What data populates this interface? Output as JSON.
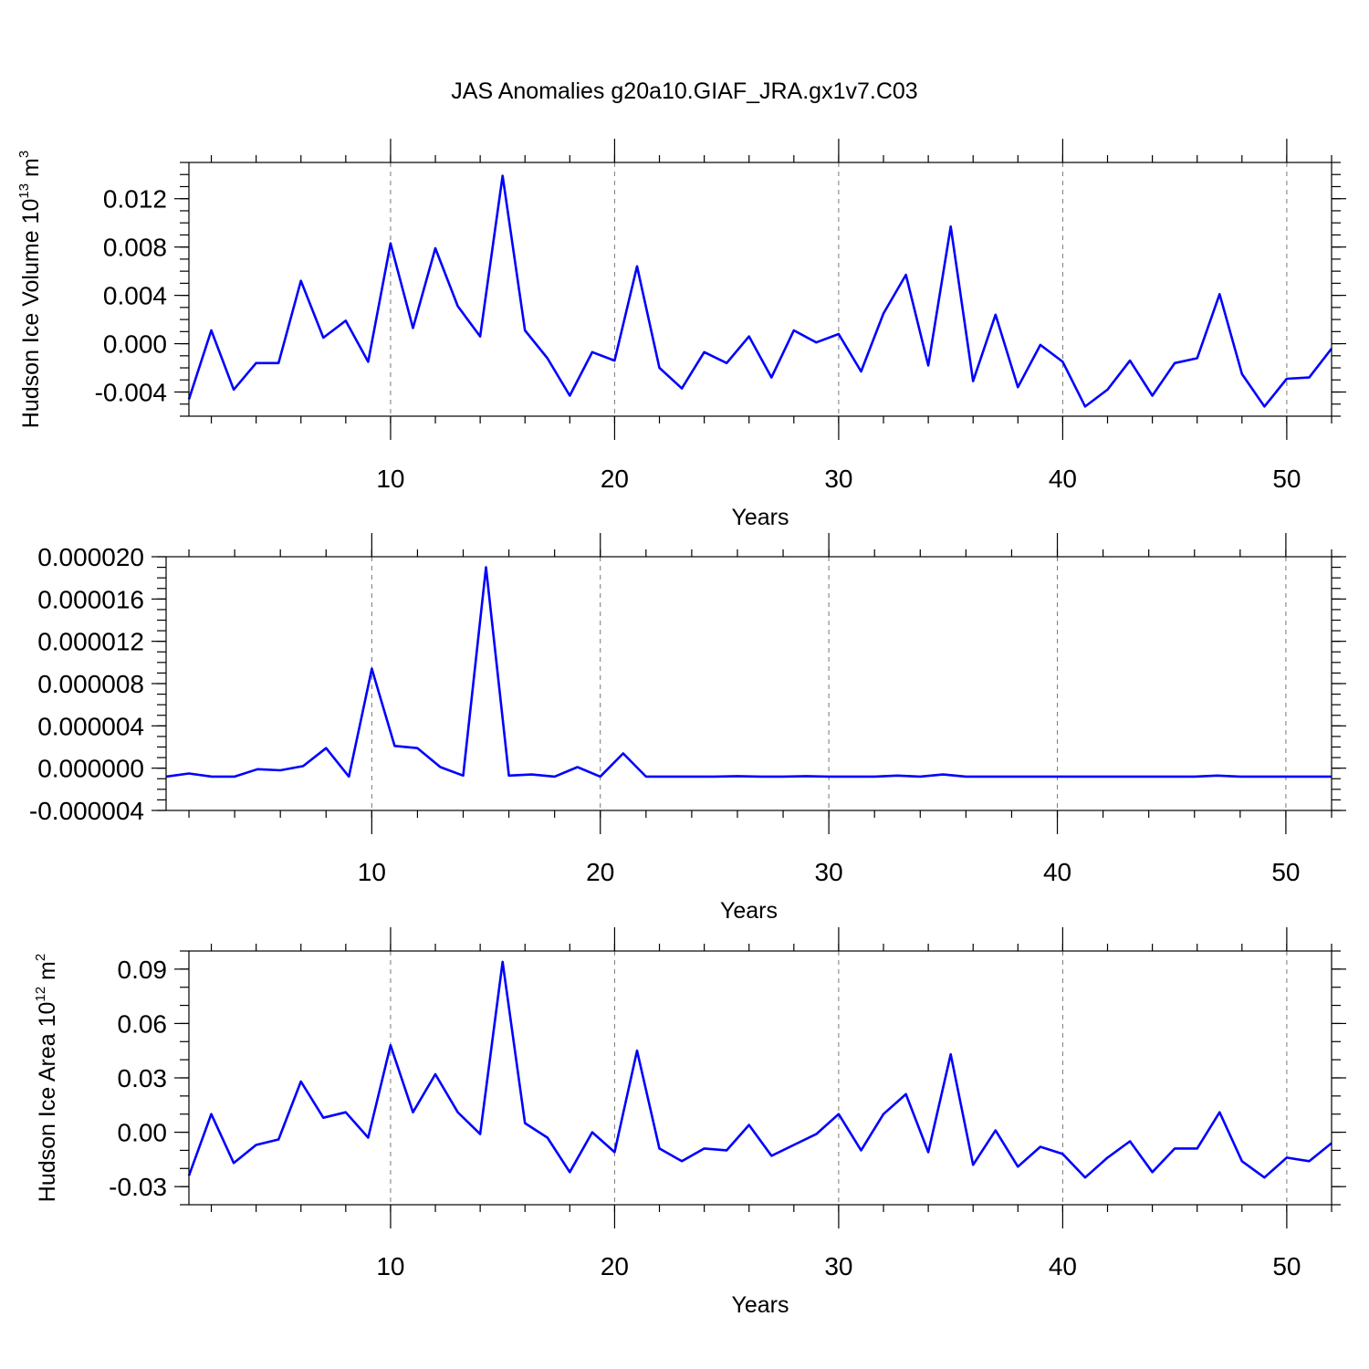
{
  "figure": {
    "title": "JAS Anomalies g20a10.GIAF_JRA.gx1v7.C03"
  },
  "style": {
    "line_color": "#0000ff"
  },
  "chart_data": [
    {
      "type": "line",
      "ylabel": "Hudson Ice Volume 10",
      "ylabel_sup": "13",
      "ylabel_unit": " m",
      "ylabel_unit_sup": "3",
      "xlabel": "Years",
      "xlim": [
        1,
        52
      ],
      "ylim": [
        -0.006,
        0.015
      ],
      "xticks": [
        10,
        20,
        30,
        40,
        50
      ],
      "xtick_labels": [
        "10",
        "20",
        "30",
        "40",
        "50"
      ],
      "x_minor": [
        2,
        4,
        6,
        8,
        10,
        12,
        14,
        16,
        18,
        20,
        22,
        24,
        26,
        28,
        30,
        32,
        34,
        36,
        38,
        40,
        42,
        44,
        46,
        48,
        50,
        52
      ],
      "yticks": [
        -0.004,
        0.0,
        0.004,
        0.008,
        0.012
      ],
      "ytick_labels": [
        "-0.004",
        "0.000",
        "0.004",
        "0.008",
        "0.012"
      ],
      "y_minor_step": 0.001,
      "grid_x": true,
      "x": [
        1,
        2,
        3,
        4,
        5,
        6,
        7,
        8,
        9,
        10,
        11,
        12,
        13,
        14,
        15,
        16,
        17,
        18,
        19,
        20,
        21,
        22,
        23,
        24,
        25,
        26,
        27,
        28,
        29,
        30,
        31,
        32,
        33,
        34,
        35,
        36,
        37,
        38,
        39,
        40,
        41,
        42,
        43,
        44,
        45,
        46,
        47,
        48,
        49,
        50,
        51,
        52
      ],
      "values": [
        -0.0046,
        0.0011,
        -0.0038,
        -0.0016,
        -0.0016,
        0.0052,
        0.0005,
        0.0019,
        -0.0015,
        0.0083,
        0.0013,
        0.0079,
        0.0031,
        0.0006,
        0.0139,
        0.0011,
        -0.0012,
        -0.0043,
        -0.0007,
        -0.0014,
        0.0064,
        -0.002,
        -0.0037,
        -0.0007,
        -0.0016,
        0.0006,
        -0.0028,
        0.0011,
        0.0001,
        0.0008,
        -0.0023,
        0.0025,
        0.0057,
        -0.0018,
        0.0097,
        -0.0031,
        0.0024,
        -0.0036,
        -0.0001,
        -0.0015,
        -0.0052,
        -0.0038,
        -0.0014,
        -0.0043,
        -0.0016,
        -0.0012,
        0.0041,
        -0.0025,
        -0.0052,
        -0.0029,
        -0.0028,
        -0.0004
      ]
    },
    {
      "type": "line",
      "ylabel": "",
      "xlabel": "Years",
      "xlim": [
        1,
        52
      ],
      "ylim": [
        -4e-06,
        2e-05
      ],
      "xticks": [
        10,
        20,
        30,
        40,
        50
      ],
      "xtick_labels": [
        "10",
        "20",
        "30",
        "40",
        "50"
      ],
      "x_minor": [
        2,
        4,
        6,
        8,
        10,
        12,
        14,
        16,
        18,
        20,
        22,
        24,
        26,
        28,
        30,
        32,
        34,
        36,
        38,
        40,
        42,
        44,
        46,
        48,
        50,
        52
      ],
      "yticks": [
        -4e-06,
        0.0,
        4e-06,
        8e-06,
        1.2e-05,
        1.6e-05,
        2e-05
      ],
      "ytick_labels": [
        "-0.000004",
        "0.000000",
        "0.000004",
        "0.000008",
        "0.000012",
        "0.000016",
        "0.000020"
      ],
      "y_minor_step": 1e-06,
      "grid_x": true,
      "x": [
        1,
        2,
        3,
        4,
        5,
        6,
        7,
        8,
        9,
        10,
        11,
        12,
        13,
        14,
        15,
        16,
        17,
        18,
        19,
        20,
        21,
        22,
        23,
        24,
        25,
        26,
        27,
        28,
        29,
        30,
        31,
        32,
        33,
        34,
        35,
        36,
        37,
        38,
        39,
        40,
        41,
        42,
        43,
        44,
        45,
        46,
        47,
        48,
        49,
        50,
        51,
        52
      ],
      "values": [
        -8e-07,
        -5e-07,
        -8e-07,
        -8e-07,
        -1e-07,
        -2e-07,
        2e-07,
        1.9e-06,
        -8e-07,
        9.4e-06,
        2.1e-06,
        1.9e-06,
        1e-07,
        -7e-07,
        1.9e-05,
        -7e-07,
        -6e-07,
        -8e-07,
        1e-07,
        -8e-07,
        1.4e-06,
        -8e-07,
        -8e-07,
        -8e-07,
        -8e-07,
        -7.5e-07,
        -8e-07,
        -8e-07,
        -7.5e-07,
        -8e-07,
        -8e-07,
        -8e-07,
        -7e-07,
        -8e-07,
        -6e-07,
        -8e-07,
        -8e-07,
        -8e-07,
        -8e-07,
        -8e-07,
        -8e-07,
        -8e-07,
        -8e-07,
        -8e-07,
        -8e-07,
        -8e-07,
        -7e-07,
        -8e-07,
        -8e-07,
        -8e-07,
        -8e-07,
        -8e-07
      ]
    },
    {
      "type": "line",
      "ylabel": "Hudson Ice Area 10",
      "ylabel_sup": "12",
      "ylabel_unit": " m",
      "ylabel_unit_sup": "2",
      "xlabel": "Years",
      "xlim": [
        1,
        52
      ],
      "ylim": [
        -0.04,
        0.1
      ],
      "xticks": [
        10,
        20,
        30,
        40,
        50
      ],
      "xtick_labels": [
        "10",
        "20",
        "30",
        "40",
        "50"
      ],
      "x_minor": [
        2,
        4,
        6,
        8,
        10,
        12,
        14,
        16,
        18,
        20,
        22,
        24,
        26,
        28,
        30,
        32,
        34,
        36,
        38,
        40,
        42,
        44,
        46,
        48,
        50,
        52
      ],
      "yticks": [
        -0.03,
        0.0,
        0.03,
        0.06,
        0.09
      ],
      "ytick_labels": [
        "-0.03",
        "0.00",
        "0.03",
        "0.06",
        "0.09"
      ],
      "y_minor_step": 0.01,
      "grid_x": true,
      "x": [
        1,
        2,
        3,
        4,
        5,
        6,
        7,
        8,
        9,
        10,
        11,
        12,
        13,
        14,
        15,
        16,
        17,
        18,
        19,
        20,
        21,
        22,
        23,
        24,
        25,
        26,
        27,
        28,
        29,
        30,
        31,
        32,
        33,
        34,
        35,
        36,
        37,
        38,
        39,
        40,
        41,
        42,
        43,
        44,
        45,
        46,
        47,
        48,
        49,
        50,
        51,
        52
      ],
      "values": [
        -0.024,
        0.01,
        -0.017,
        -0.007,
        -0.004,
        0.028,
        0.008,
        0.011,
        -0.003,
        0.048,
        0.011,
        0.032,
        0.011,
        -0.001,
        0.094,
        0.005,
        -0.003,
        -0.022,
        0.0,
        -0.011,
        0.045,
        -0.009,
        -0.016,
        -0.009,
        -0.01,
        0.004,
        -0.013,
        -0.007,
        -0.001,
        0.01,
        -0.01,
        0.01,
        0.021,
        -0.011,
        0.043,
        -0.018,
        0.001,
        -0.019,
        -0.008,
        -0.012,
        -0.025,
        -0.014,
        -0.005,
        -0.022,
        -0.009,
        -0.009,
        0.011,
        -0.016,
        -0.025,
        -0.014,
        -0.016,
        -0.006
      ]
    }
  ]
}
